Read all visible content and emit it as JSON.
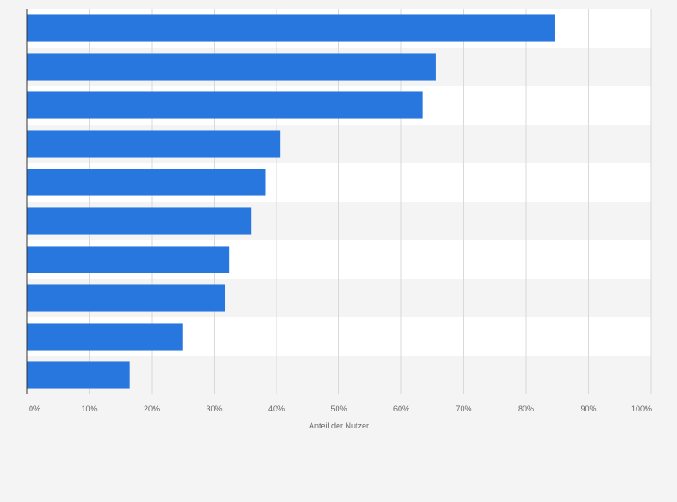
{
  "chart_data": {
    "type": "bar",
    "orientation": "horizontal",
    "title": "",
    "xlabel": "Anteil der Nutzer",
    "ylabel": "",
    "xlim": [
      0,
      100
    ],
    "categories": [
      "",
      "",
      "",
      "",
      "",
      "",
      "",
      "",
      "",
      ""
    ],
    "values": [
      84.6,
      65.6,
      63.4,
      40.6,
      38.2,
      36.0,
      32.4,
      31.8,
      25.0,
      16.5
    ],
    "xticks": [
      "0%",
      "10%",
      "20%",
      "30%",
      "40%",
      "50%",
      "60%",
      "70%",
      "80%",
      "90%",
      "100%"
    ],
    "grid": true,
    "colors": {
      "bar": "#2877de",
      "plot_bg_odd": "#ffffff",
      "plot_bg_even": "#f4f4f4",
      "page_bg": "#f4f4f4",
      "grid": "#d9d9d9",
      "axis": "#333333"
    }
  }
}
